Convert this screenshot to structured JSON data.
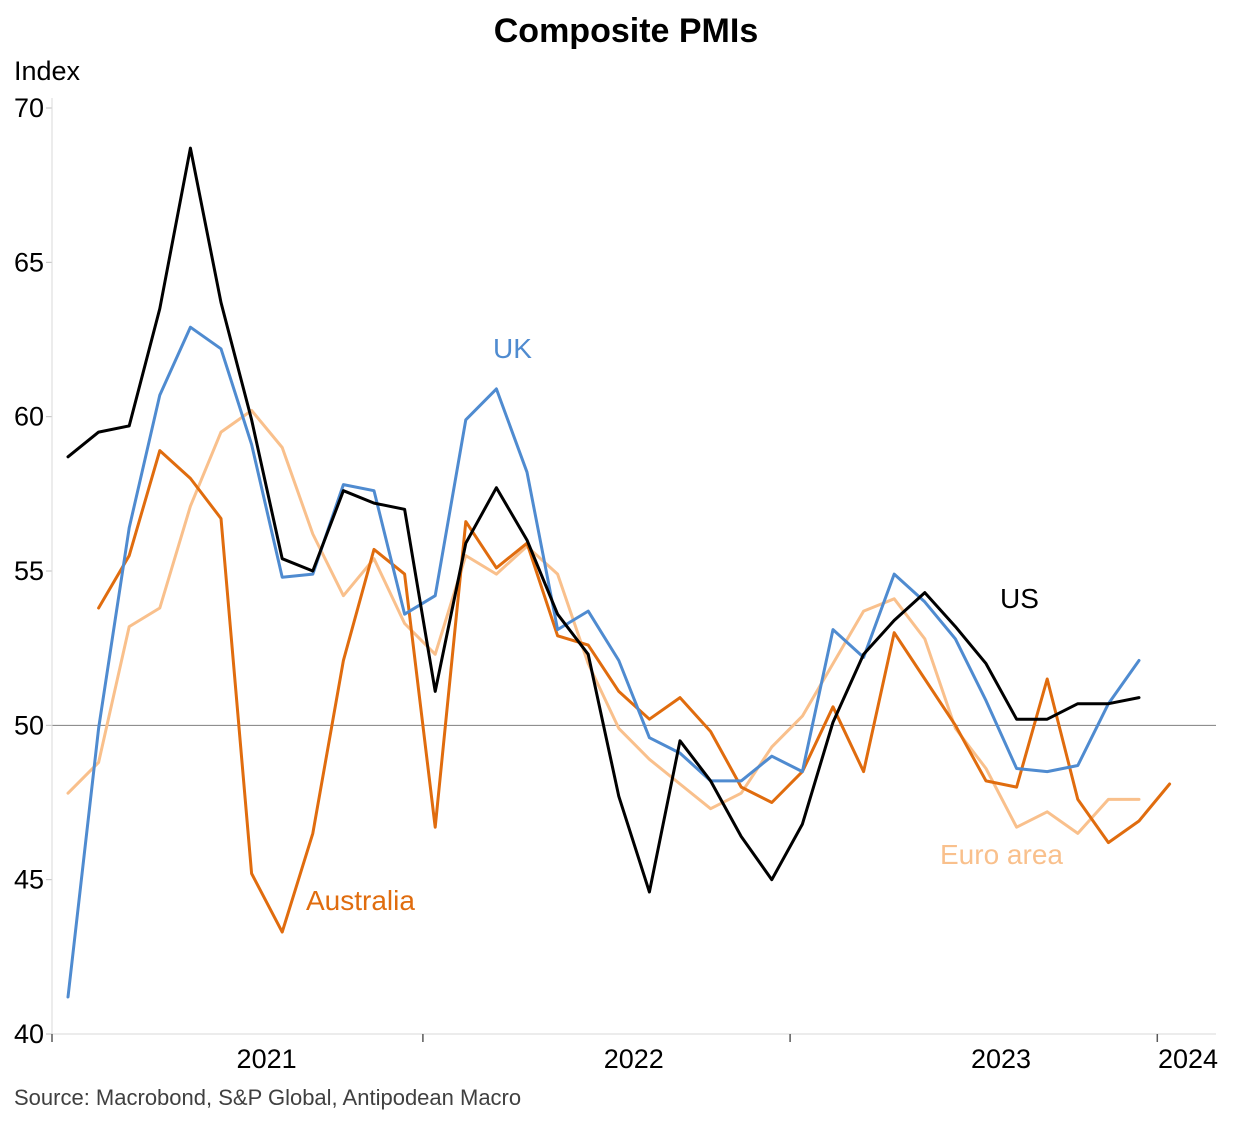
{
  "chart_data": {
    "type": "line",
    "title": "Composite PMIs",
    "ylabel": "Index",
    "source": "Source: Macrobond, S&P Global, Antipodean Macro",
    "ylim": [
      40,
      70
    ],
    "yticks": [
      "40",
      "45",
      "50",
      "55",
      "60",
      "65",
      "70"
    ],
    "reference_line": 50,
    "xlim": [
      "2020-06",
      "2024-01"
    ],
    "xtick_boundaries": [
      "2020-06",
      "2021-06",
      "2022-06",
      "2023-06"
    ],
    "xticklabels": [
      {
        "label": "2021",
        "at": "2020-12"
      },
      {
        "label": "2022",
        "at": "2021-12"
      },
      {
        "label": "2023",
        "at": "2022-12"
      },
      {
        "label": "2024",
        "at": "2023-12"
      }
    ],
    "series": [
      {
        "name": "UK",
        "color": "#4f8bd0",
        "label_at": [
          "2021-05",
          61.8
        ],
        "start": "2020-06",
        "values": [
          41.2,
          49.9,
          56.4,
          60.7,
          62.9,
          62.2,
          59.1,
          54.8,
          54.9,
          57.8,
          57.6,
          53.6,
          54.2,
          59.9,
          60.9,
          58.2,
          53.1,
          53.7,
          52.1,
          49.6,
          49.1,
          48.2,
          48.2,
          49.0,
          48.5,
          53.1,
          52.2,
          54.9,
          54.0,
          52.8,
          50.8,
          48.6,
          48.5,
          48.7,
          50.7,
          52.1
        ]
      },
      {
        "name": "US",
        "color": "#000000",
        "label_at": [
          "2023-08",
          53.6
        ],
        "start": "2020-06",
        "values": [
          58.7,
          59.5,
          59.7,
          63.5,
          68.7,
          63.7,
          59.9,
          55.4,
          55.0,
          57.6,
          57.2,
          57.0,
          51.1,
          55.9,
          57.7,
          56.0,
          53.6,
          52.3,
          47.7,
          44.6,
          49.5,
          48.2,
          46.4,
          45.0,
          46.8,
          50.1,
          52.3,
          53.4,
          54.3,
          53.2,
          52.0,
          50.2,
          50.2,
          50.7,
          50.7,
          50.9
        ]
      },
      {
        "name": "Australia",
        "color": "#e06c0e",
        "label_at": [
          "2021-03",
          43.6
        ],
        "start": "2020-07",
        "values": [
          53.8,
          55.5,
          58.9,
          58.0,
          56.7,
          45.2,
          43.3,
          46.5,
          52.1,
          55.7,
          54.9,
          46.7,
          56.6,
          55.1,
          55.9,
          52.9,
          52.6,
          51.1,
          50.2,
          50.9,
          49.8,
          48.0,
          47.5,
          48.5,
          50.6,
          48.5,
          53.0,
          51.5,
          50.0,
          48.2,
          48.0,
          51.5,
          47.6,
          46.2,
          46.9,
          48.1
        ]
      },
      {
        "name": "Euro area",
        "color": "#f9c08c",
        "label_at": [
          "2023-08",
          45.2
        ],
        "start": "2020-06",
        "values": [
          47.8,
          48.8,
          53.2,
          53.8,
          57.1,
          59.5,
          60.2,
          59.0,
          56.2,
          54.2,
          55.4,
          53.3,
          52.3,
          55.5,
          54.9,
          55.8,
          54.9,
          52.0,
          49.9,
          48.9,
          48.1,
          47.3,
          47.8,
          49.3,
          50.3,
          52.0,
          53.7,
          54.1,
          52.8,
          49.9,
          48.6,
          46.7,
          47.2,
          46.5,
          47.6,
          47.6
        ]
      }
    ]
  }
}
